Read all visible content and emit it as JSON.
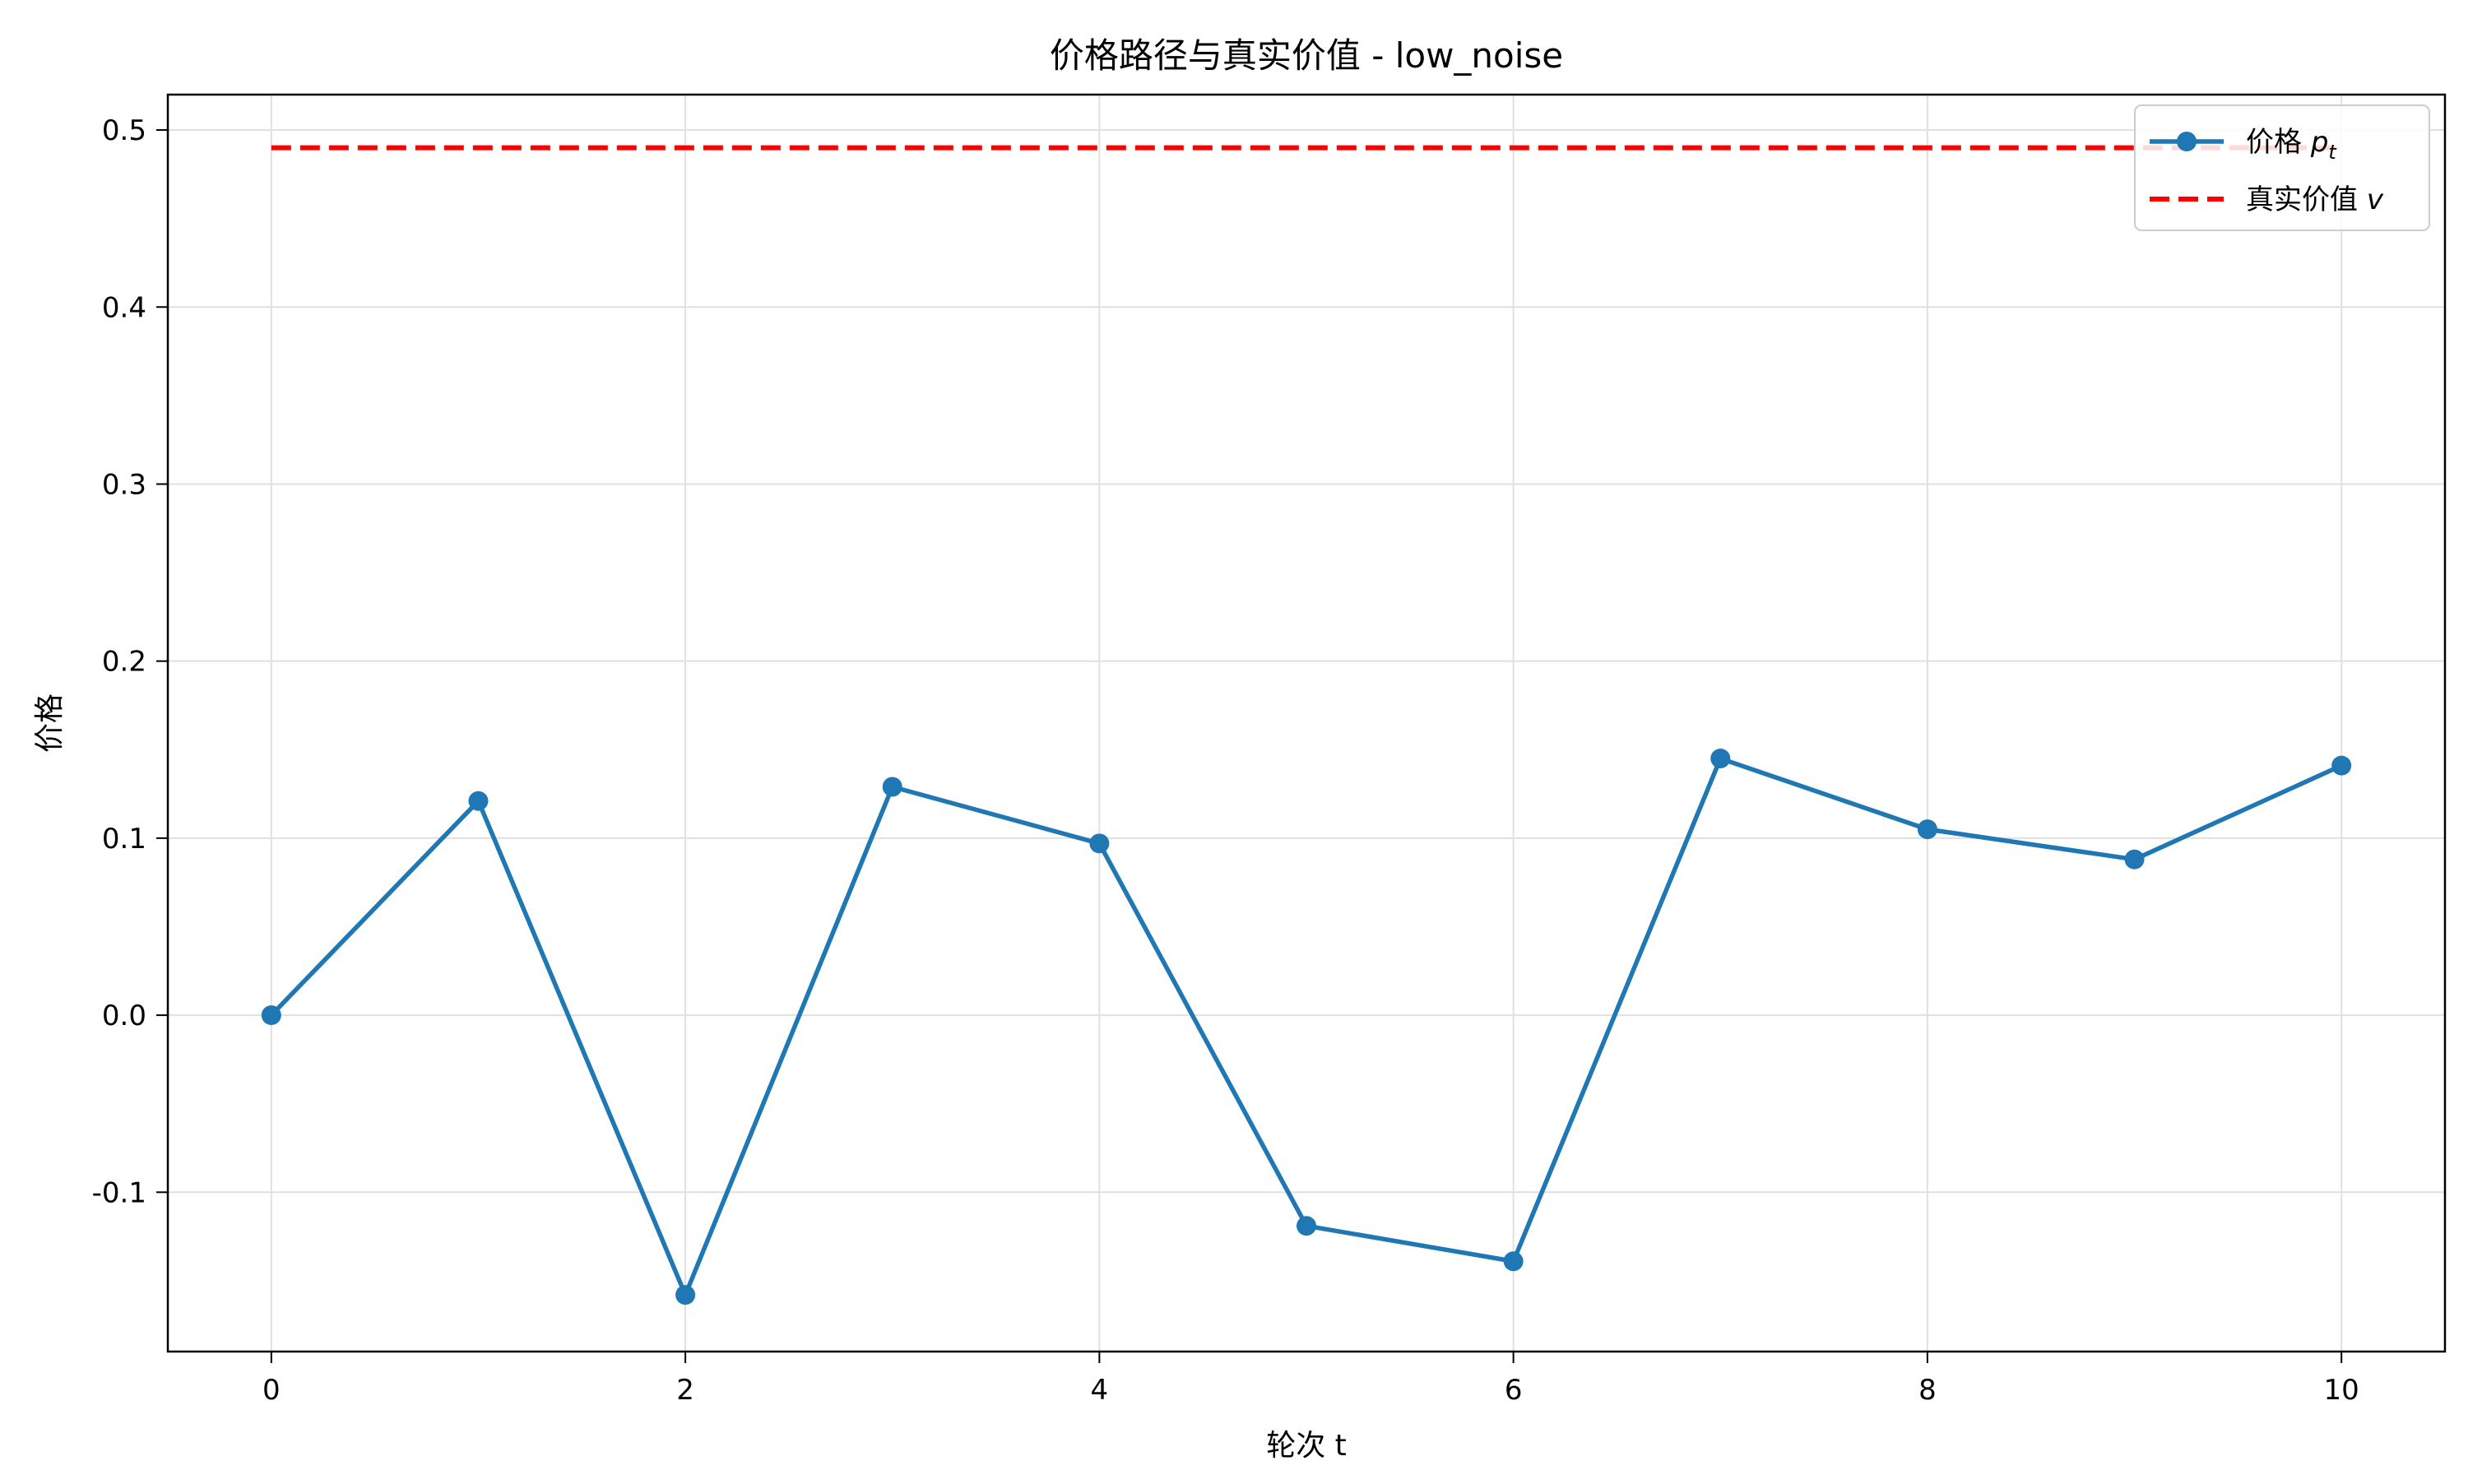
{
  "chart_data": {
    "type": "line",
    "title": "价格路径与真实价值 - low_noise",
    "xlabel": "轮次 t",
    "ylabel": "价格",
    "xlim": [
      -0.5,
      10.5
    ],
    "ylim": [
      -0.19,
      0.52
    ],
    "xticks": [
      0,
      2,
      4,
      6,
      8,
      10
    ],
    "xtick_labels": [
      "0",
      "2",
      "4",
      "6",
      "8",
      "10"
    ],
    "yticks": [
      -0.1,
      0.0,
      0.1,
      0.2,
      0.3,
      0.4,
      0.5
    ],
    "ytick_labels": [
      "-0.1",
      "0.0",
      "0.1",
      "0.2",
      "0.3",
      "0.4",
      "0.5"
    ],
    "grid": true,
    "legend_position": "top-right",
    "series": [
      {
        "name": "价格",
        "name_math_symbol": "p",
        "name_math_subscript": "t",
        "style": "line-with-markers",
        "color": "#1f77b4",
        "x": [
          0,
          1,
          2,
          3,
          4,
          5,
          6,
          7,
          8,
          9,
          10
        ],
        "values": [
          0.0,
          0.121,
          -0.158,
          0.129,
          0.097,
          -0.119,
          -0.139,
          0.145,
          0.105,
          0.088,
          0.141
        ]
      },
      {
        "name": "真实价值",
        "name_math_symbol": "v",
        "style": "dashed",
        "color": "#ff0000",
        "x": [
          0,
          10
        ],
        "values": [
          0.49,
          0.49
        ]
      }
    ]
  }
}
